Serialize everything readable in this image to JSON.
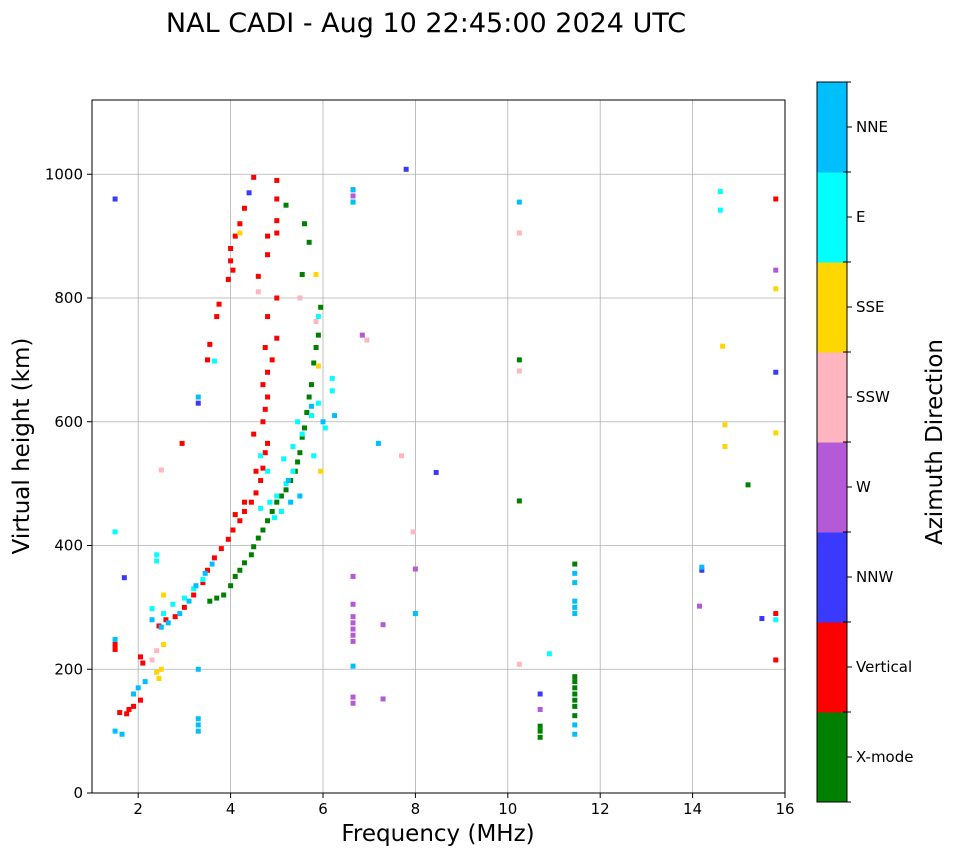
{
  "chart_data": {
    "type": "scatter",
    "title": "NAL CADI - Aug 10 22:45:00 2024 UTC",
    "xlabel": "Frequency (MHz)",
    "ylabel": "Virtual height (km)",
    "xlim": [
      1,
      16
    ],
    "ylim": [
      0,
      1120
    ],
    "xticks": [
      2,
      4,
      6,
      8,
      10,
      12,
      14,
      16
    ],
    "yticks": [
      0,
      200,
      400,
      600,
      800,
      1000
    ],
    "grid": true,
    "colorbar": {
      "label": "Azimuth Direction",
      "categories": [
        {
          "name": "X-mode",
          "color": "#008000"
        },
        {
          "name": "Vertical",
          "color": "#ff0000"
        },
        {
          "name": "NNW",
          "color": "#3a3aff"
        },
        {
          "name": "W",
          "color": "#b45ad6"
        },
        {
          "name": "SSW",
          "color": "#ffb6c1"
        },
        {
          "name": "SSE",
          "color": "#ffd700"
        },
        {
          "name": "E",
          "color": "#00ffff"
        },
        {
          "name": "NNE",
          "color": "#00bfff"
        }
      ]
    },
    "series": [
      {
        "name": "X-mode",
        "color": "#008000",
        "points": [
          [
            3.55,
            310
          ],
          [
            3.7,
            315
          ],
          [
            3.85,
            320
          ],
          [
            4.0,
            335
          ],
          [
            4.1,
            350
          ],
          [
            4.2,
            360
          ],
          [
            4.3,
            372
          ],
          [
            4.45,
            385
          ],
          [
            4.5,
            398
          ],
          [
            4.6,
            412
          ],
          [
            4.7,
            425
          ],
          [
            4.8,
            440
          ],
          [
            4.9,
            455
          ],
          [
            5.0,
            470
          ],
          [
            5.1,
            480
          ],
          [
            5.2,
            490
          ],
          [
            5.3,
            505
          ],
          [
            5.4,
            520
          ],
          [
            5.45,
            535
          ],
          [
            5.5,
            550
          ],
          [
            5.55,
            575
          ],
          [
            5.6,
            590
          ],
          [
            5.65,
            615
          ],
          [
            5.7,
            640
          ],
          [
            5.75,
            660
          ],
          [
            5.8,
            695
          ],
          [
            5.85,
            720
          ],
          [
            5.9,
            740
          ],
          [
            5.95,
            785
          ],
          [
            5.55,
            838
          ],
          [
            5.2,
            950
          ],
          [
            5.6,
            920
          ],
          [
            5.7,
            890
          ],
          [
            10.25,
            472
          ],
          [
            10.25,
            700
          ],
          [
            10.7,
            90
          ],
          [
            10.7,
            100
          ],
          [
            10.7,
            108
          ],
          [
            11.45,
            125
          ],
          [
            11.45,
            140
          ],
          [
            11.45,
            150
          ],
          [
            11.45,
            160
          ],
          [
            11.45,
            170
          ],
          [
            11.45,
            180
          ],
          [
            11.45,
            188
          ],
          [
            11.45,
            370
          ],
          [
            15.2,
            498
          ]
        ]
      },
      {
        "name": "Vertical",
        "color": "#ff0000",
        "points": [
          [
            1.5,
            232
          ],
          [
            1.5,
            240
          ],
          [
            1.6,
            130
          ],
          [
            1.75,
            128
          ],
          [
            1.8,
            135
          ],
          [
            1.9,
            140
          ],
          [
            2.05,
            150
          ],
          [
            2.1,
            210
          ],
          [
            2.05,
            220
          ],
          [
            2.45,
            270
          ],
          [
            2.6,
            280
          ],
          [
            2.8,
            285
          ],
          [
            3.0,
            300
          ],
          [
            3.2,
            320
          ],
          [
            3.4,
            340
          ],
          [
            3.5,
            360
          ],
          [
            3.65,
            380
          ],
          [
            3.8,
            395
          ],
          [
            3.95,
            410
          ],
          [
            4.05,
            425
          ],
          [
            4.2,
            440
          ],
          [
            4.3,
            455
          ],
          [
            4.45,
            470
          ],
          [
            4.55,
            485
          ],
          [
            4.65,
            505
          ],
          [
            4.7,
            525
          ],
          [
            4.75,
            550
          ],
          [
            4.8,
            565
          ],
          [
            4.5,
            580
          ],
          [
            4.7,
            600
          ],
          [
            4.75,
            620
          ],
          [
            4.8,
            640
          ],
          [
            4.7,
            660
          ],
          [
            4.8,
            680
          ],
          [
            4.9,
            700
          ],
          [
            4.75,
            720
          ],
          [
            5.0,
            735
          ],
          [
            4.8,
            770
          ],
          [
            5.0,
            800
          ],
          [
            4.6,
            835
          ],
          [
            4.8,
            870
          ],
          [
            4.8,
            900
          ],
          [
            5.0,
            905
          ],
          [
            5.0,
            925
          ],
          [
            4.3,
            945
          ],
          [
            4.2,
            920
          ],
          [
            4.1,
            900
          ],
          [
            4.0,
            880
          ],
          [
            4.0,
            860
          ],
          [
            4.05,
            845
          ],
          [
            3.95,
            830
          ],
          [
            3.75,
            790
          ],
          [
            3.7,
            770
          ],
          [
            3.55,
            725
          ],
          [
            3.5,
            700
          ],
          [
            2.95,
            565
          ],
          [
            4.5,
            995
          ],
          [
            5.0,
            990
          ],
          [
            5.0,
            960
          ],
          [
            15.8,
            960
          ],
          [
            15.8,
            290
          ],
          [
            15.8,
            215
          ],
          [
            4.55,
            520
          ],
          [
            4.3,
            470
          ],
          [
            4.1,
            450
          ]
        ]
      },
      {
        "name": "NNW",
        "color": "#3a3aff",
        "points": [
          [
            1.5,
            960
          ],
          [
            1.7,
            348
          ],
          [
            3.3,
            630
          ],
          [
            7.8,
            1008
          ],
          [
            8.45,
            518
          ],
          [
            10.7,
            160
          ],
          [
            14.2,
            360
          ],
          [
            15.5,
            282
          ],
          [
            15.8,
            680
          ],
          [
            4.4,
            970
          ]
        ]
      },
      {
        "name": "W",
        "color": "#b45ad6",
        "points": [
          [
            6.65,
            350
          ],
          [
            6.65,
            305
          ],
          [
            6.65,
            285
          ],
          [
            6.65,
            275
          ],
          [
            6.65,
            265
          ],
          [
            6.65,
            255
          ],
          [
            6.65,
            245
          ],
          [
            6.65,
            155
          ],
          [
            6.65,
            145
          ],
          [
            7.3,
            272
          ],
          [
            7.3,
            152
          ],
          [
            8.0,
            362
          ],
          [
            10.7,
            135
          ],
          [
            14.15,
            302
          ],
          [
            15.8,
            845
          ],
          [
            6.65,
            975
          ],
          [
            6.65,
            965
          ],
          [
            6.65,
            955
          ],
          [
            6.85,
            740
          ]
        ]
      },
      {
        "name": "SSW",
        "color": "#ffb6c1",
        "points": [
          [
            2.5,
            522
          ],
          [
            2.4,
            230
          ],
          [
            2.3,
            215
          ],
          [
            7.7,
            545
          ],
          [
            7.95,
            422
          ],
          [
            10.25,
            208
          ],
          [
            10.25,
            682
          ],
          [
            10.25,
            905
          ],
          [
            5.5,
            800
          ],
          [
            5.85,
            762
          ],
          [
            4.6,
            810
          ],
          [
            6.95,
            732
          ]
        ]
      },
      {
        "name": "SSE",
        "color": "#ffd700",
        "points": [
          [
            2.45,
            185
          ],
          [
            2.4,
            195
          ],
          [
            2.5,
            200
          ],
          [
            2.55,
            240
          ],
          [
            2.55,
            320
          ],
          [
            5.85,
            838
          ],
          [
            5.95,
            520
          ],
          [
            14.65,
            722
          ],
          [
            14.7,
            595
          ],
          [
            14.7,
            560
          ],
          [
            15.8,
            582
          ],
          [
            15.8,
            815
          ],
          [
            5.9,
            690
          ],
          [
            4.2,
            905
          ]
        ]
      },
      {
        "name": "E",
        "color": "#00ffff",
        "points": [
          [
            2.3,
            298
          ],
          [
            2.55,
            290
          ],
          [
            2.75,
            305
          ],
          [
            3.0,
            315
          ],
          [
            3.2,
            330
          ],
          [
            3.4,
            345
          ],
          [
            4.65,
            460
          ],
          [
            4.85,
            470
          ],
          [
            5.0,
            480
          ],
          [
            5.2,
            500
          ],
          [
            5.35,
            520
          ],
          [
            5.15,
            540
          ],
          [
            5.35,
            560
          ],
          [
            5.55,
            580
          ],
          [
            5.45,
            600
          ],
          [
            5.75,
            610
          ],
          [
            5.9,
            630
          ],
          [
            6.2,
            650
          ],
          [
            6.2,
            670
          ],
          [
            6.05,
            590
          ],
          [
            5.8,
            545
          ],
          [
            5.1,
            455
          ],
          [
            4.95,
            445
          ],
          [
            4.8,
            520
          ],
          [
            4.65,
            545
          ],
          [
            5.9,
            770
          ],
          [
            14.6,
            972
          ],
          [
            14.6,
            942
          ],
          [
            15.8,
            280
          ],
          [
            10.9,
            225
          ],
          [
            2.4,
            385
          ],
          [
            2.4,
            375
          ],
          [
            3.65,
            698
          ],
          [
            1.5,
            422
          ]
        ]
      },
      {
        "name": "NNE",
        "color": "#00bfff",
        "points": [
          [
            1.5,
            100
          ],
          [
            1.5,
            248
          ],
          [
            1.65,
            95
          ],
          [
            1.9,
            160
          ],
          [
            2.0,
            170
          ],
          [
            2.15,
            180
          ],
          [
            2.3,
            280
          ],
          [
            2.5,
            268
          ],
          [
            2.65,
            275
          ],
          [
            2.9,
            290
          ],
          [
            3.1,
            310
          ],
          [
            3.25,
            335
          ],
          [
            3.45,
            355
          ],
          [
            3.6,
            370
          ],
          [
            3.3,
            100
          ],
          [
            3.3,
            110
          ],
          [
            3.3,
            120
          ],
          [
            3.3,
            200
          ],
          [
            5.3,
            470
          ],
          [
            5.5,
            480
          ],
          [
            5.25,
            505
          ],
          [
            6.25,
            610
          ],
          [
            6.0,
            600
          ],
          [
            5.75,
            625
          ],
          [
            6.65,
            975
          ],
          [
            6.65,
            955
          ],
          [
            11.45,
            95
          ],
          [
            11.45,
            110
          ],
          [
            11.45,
            290
          ],
          [
            11.45,
            300
          ],
          [
            11.45,
            310
          ],
          [
            11.45,
            340
          ],
          [
            11.45,
            355
          ],
          [
            10.25,
            955
          ],
          [
            14.2,
            365
          ],
          [
            7.2,
            565
          ],
          [
            8.0,
            290
          ],
          [
            6.65,
            205
          ],
          [
            3.3,
            640
          ]
        ]
      }
    ]
  }
}
